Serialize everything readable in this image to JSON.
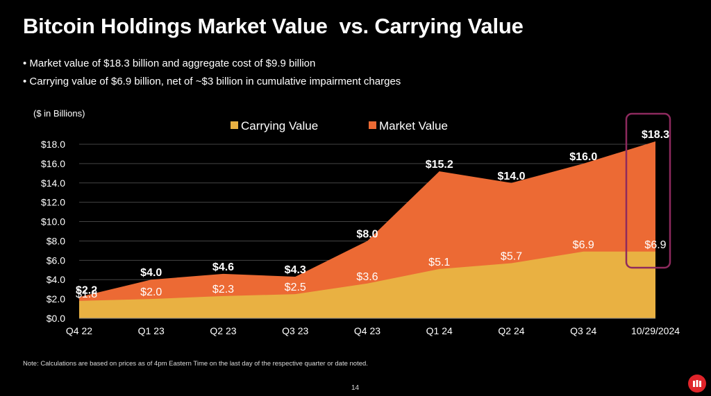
{
  "slide": {
    "title": "Bitcoin Holdings Market Value  vs. Carrying Value",
    "bullets": [
      "Market value of $18.3 billion and aggregate cost of $9.9 billion",
      "Carrying value of $6.9 billion, net of ~$3 billion in cumulative impairment charges"
    ],
    "unit_label": "($ in Billions)",
    "note": "Note: Calculations are based on prices as of 4pm Eastern Time on the last day of the respective quarter or date noted.",
    "page_number": "14"
  },
  "colors": {
    "background": "#000000",
    "carrying": "#E9B142",
    "market": "#EC6A34",
    "highlight_box": "#8E2A5E",
    "logo": "#E0242A"
  },
  "chart_data": {
    "type": "area",
    "title": "",
    "ylabel": "($ in Billions)",
    "categories": [
      "Q4 22",
      "Q1 23",
      "Q2 23",
      "Q3 23",
      "Q4 23",
      "Q1 24",
      "Q2 24",
      "Q3 24",
      "10/29/2024"
    ],
    "series": [
      {
        "name": "Carrying Value",
        "values": [
          1.8,
          2.0,
          2.3,
          2.5,
          3.6,
          5.1,
          5.7,
          6.9,
          6.9
        ],
        "labels": [
          "$1.8",
          "$2.0",
          "$2.3",
          "$2.5",
          "$3.6",
          "$5.1",
          "$5.7",
          "$6.9",
          "$6.9"
        ]
      },
      {
        "name": "Market Value",
        "values": [
          2.2,
          4.0,
          4.6,
          4.3,
          8.0,
          15.2,
          14.0,
          16.0,
          18.3
        ],
        "labels": [
          "$2.2",
          "$4.0",
          "$4.6",
          "$4.3",
          "$8.0",
          "$15.2",
          "$14.0",
          "$16.0",
          "$18.3"
        ]
      }
    ],
    "ylim": [
      0,
      18
    ],
    "yticks": [
      0,
      2,
      4,
      6,
      8,
      10,
      12,
      14,
      16,
      18
    ],
    "ytick_labels": [
      "$0.0",
      "$2.0",
      "$4.0",
      "$6.0",
      "$8.0",
      "$10.0",
      "$12.0",
      "$14.0",
      "$16.0",
      "$18.0"
    ],
    "grid": true,
    "legend": "top-center",
    "highlighted_category": "10/29/2024"
  }
}
